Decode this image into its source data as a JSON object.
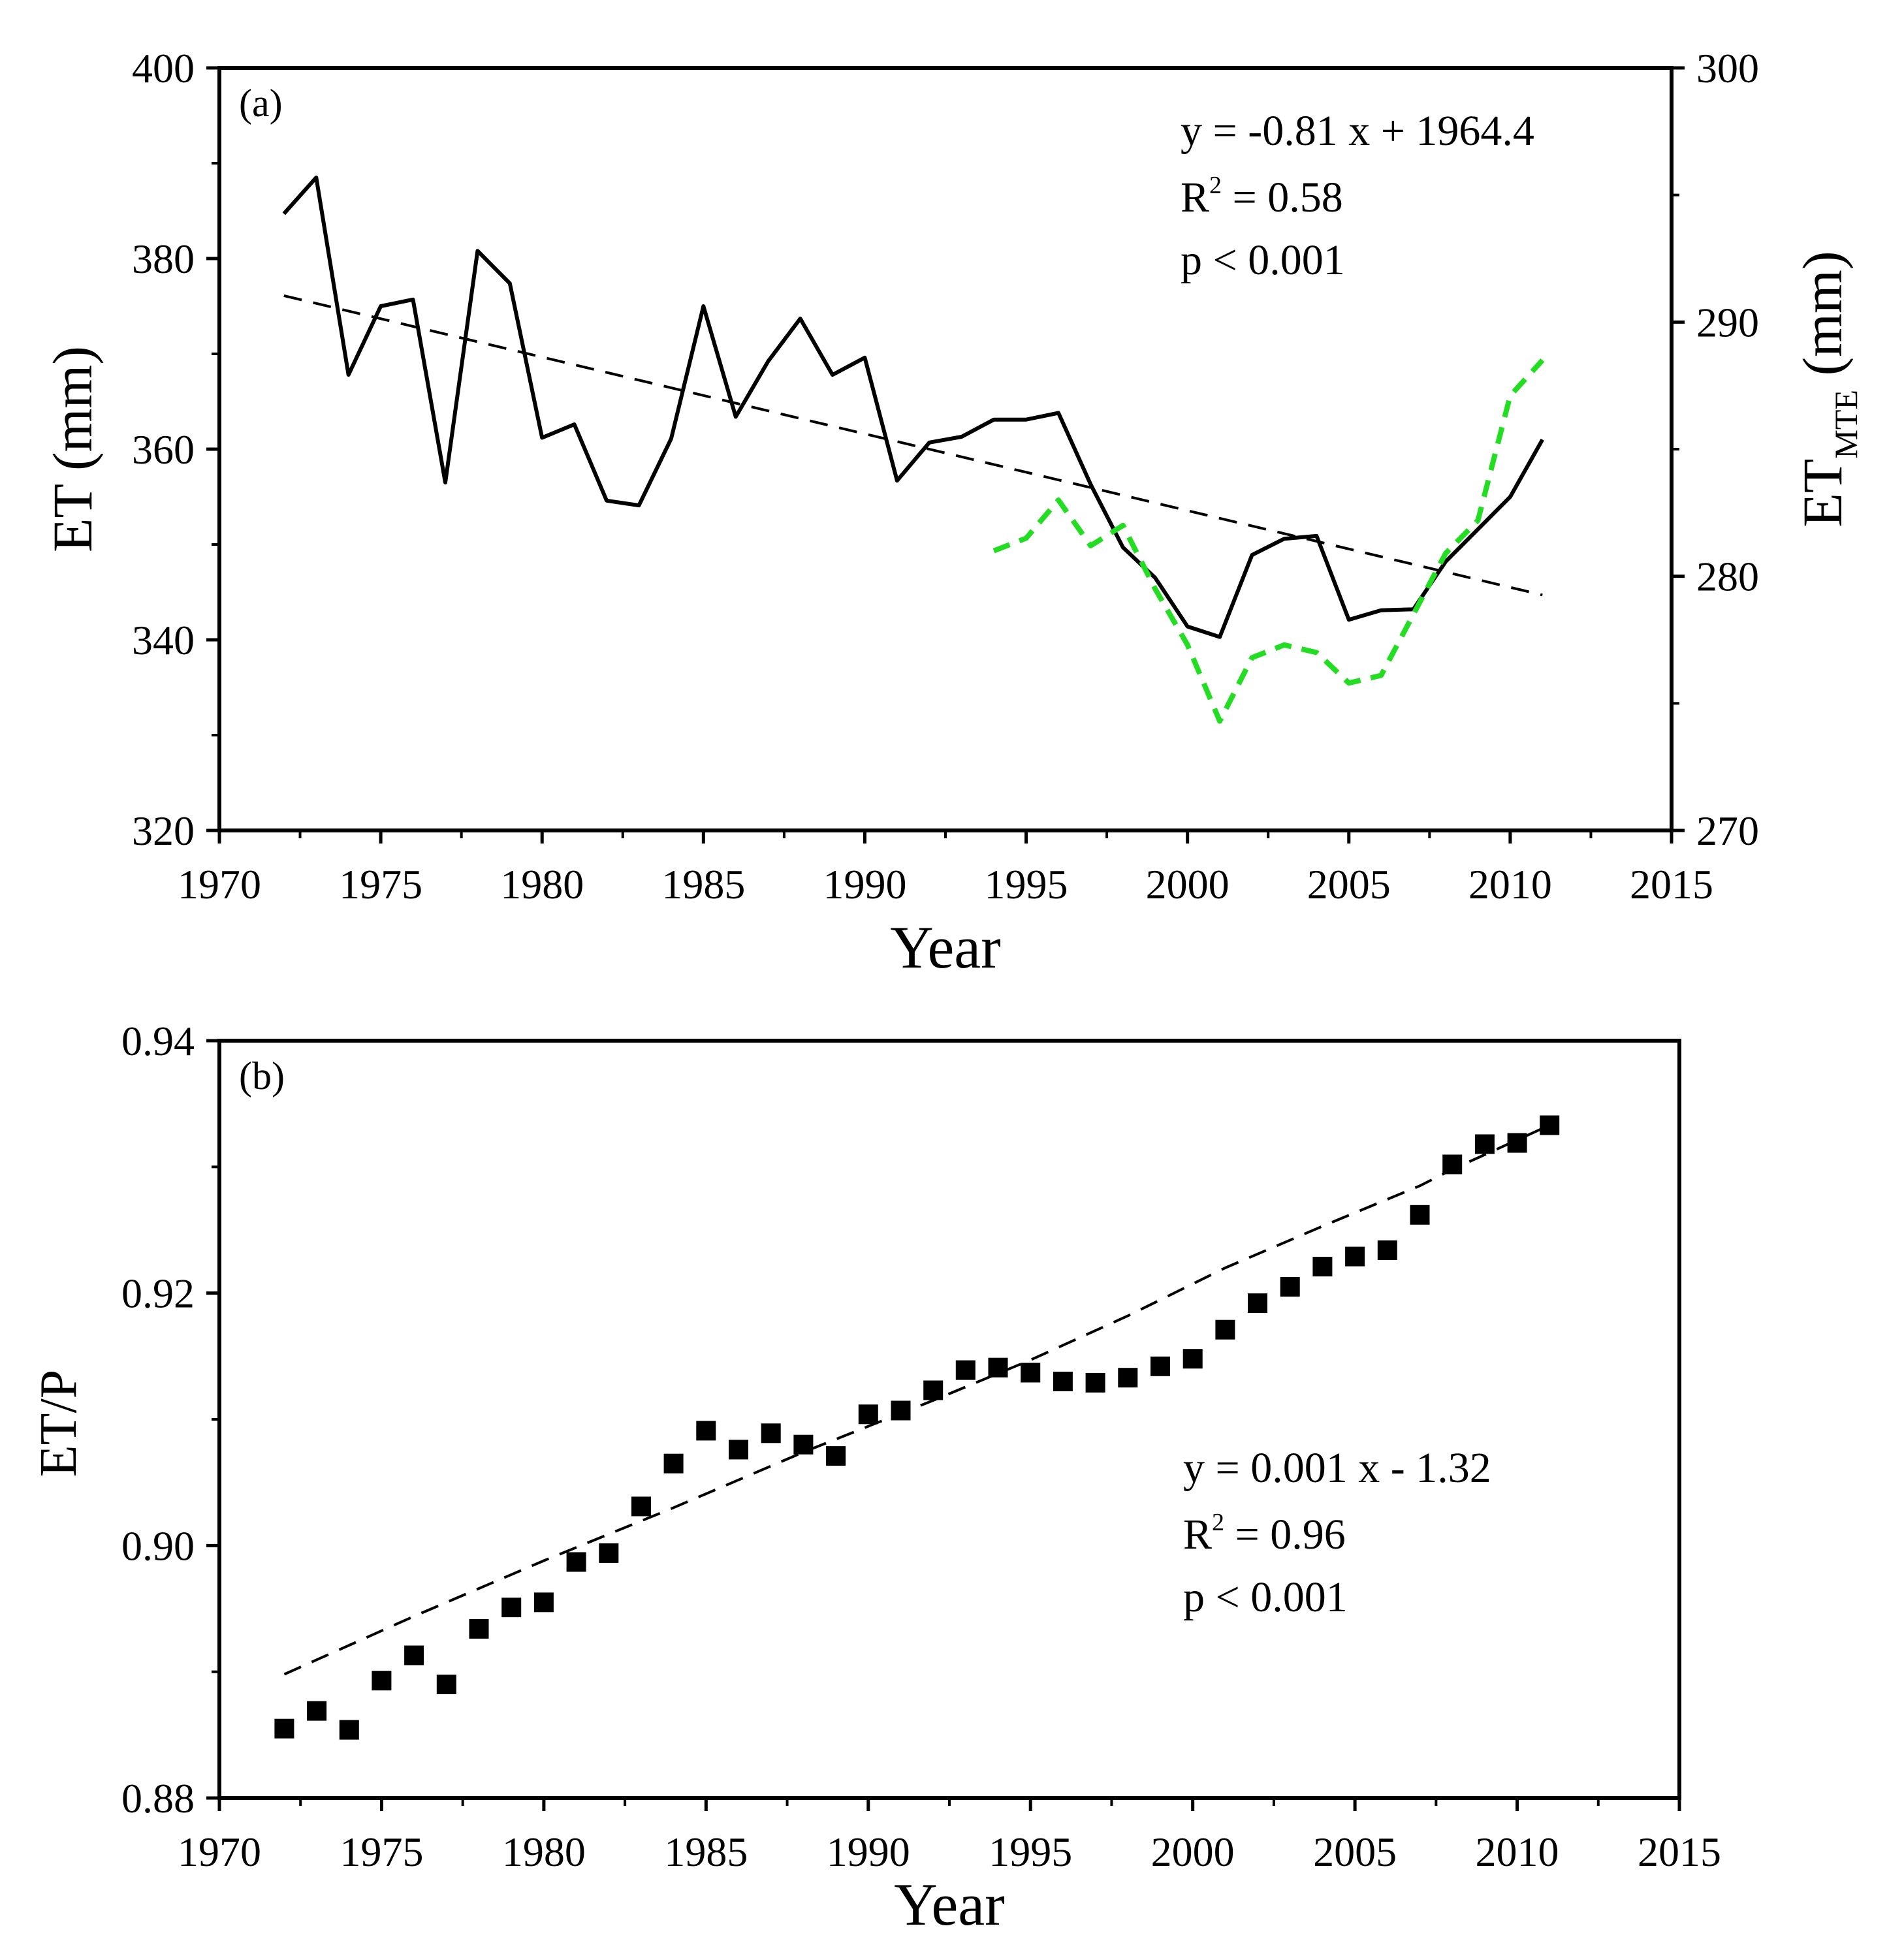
{
  "colors": {
    "et_line": "#000000",
    "mte_line": "#22dd22",
    "trend": "#000000",
    "points": "#000000"
  },
  "chart_data": [
    {
      "type": "line",
      "panel_label": "(a)",
      "xlabel": "Year",
      "ylabel": "ET (mm)",
      "ylabel_right_main": "ET",
      "ylabel_right_sub": "MTE",
      "ylabel_right_unit": " (mm)",
      "xlim": [
        1970,
        2015
      ],
      "ylim": [
        320,
        400
      ],
      "ylim_right": [
        270,
        300
      ],
      "xticks": [
        "1970",
        "1975",
        "1980",
        "1985",
        "1990",
        "1995",
        "2000",
        "2005",
        "2010",
        "2015"
      ],
      "yticks": [
        "320",
        "340",
        "360",
        "380",
        "400"
      ],
      "yticks_right": [
        "270",
        "280",
        "290",
        "300"
      ],
      "series": [
        {
          "name": "ET",
          "axis": "left",
          "style": "solid",
          "x": [
            1972,
            1973,
            1974,
            1975,
            1976,
            1977,
            1978,
            1979,
            1980,
            1981,
            1982,
            1983,
            1984,
            1985,
            1986,
            1987,
            1988,
            1989,
            1990,
            1991,
            1992,
            1993,
            1994,
            1995,
            1996,
            1997,
            1998,
            1999,
            2000,
            2001,
            2002,
            2003,
            2004,
            2005,
            2006,
            2007,
            2008,
            2009,
            2010,
            2011
          ],
          "values": [
            384.7,
            388.5,
            367.8,
            375.0,
            375.7,
            356.5,
            380.8,
            377.4,
            361.2,
            362.6,
            354.6,
            354.1,
            361.1,
            375.0,
            363.4,
            369.2,
            373.7,
            367.8,
            369.6,
            356.7,
            360.7,
            361.3,
            363.1,
            363.1,
            363.8,
            356.3,
            349.7,
            346.5,
            341.4,
            340.3,
            348.9,
            350.6,
            350.9,
            342.1,
            343.1,
            343.2,
            348.2,
            351.6,
            355.0,
            361.0
          ]
        },
        {
          "name": "ET_MTE",
          "axis": "right",
          "style": "dashed",
          "x": [
            1994,
            1995,
            1996,
            1997,
            1998,
            1999,
            2000,
            2001,
            2002,
            2003,
            2004,
            2005,
            2006,
            2007,
            2008,
            2009,
            2010,
            2011
          ],
          "values": [
            281.0,
            281.5,
            283.0,
            281.2,
            282.0,
            279.5,
            277.3,
            274.3,
            276.8,
            277.3,
            277.0,
            275.8,
            276.1,
            278.5,
            280.9,
            282.2,
            287.1,
            288.5
          ]
        },
        {
          "name": "Linear fit",
          "axis": "left",
          "style": "dashed",
          "x": [
            1972,
            2011
          ],
          "values": [
            376.1,
            344.7
          ]
        }
      ],
      "annotation": {
        "eq": "y = -0.81 x + 1964.4",
        "r2_pre": "R",
        "r2_exp": "2",
        "r2_post": " = 0.58",
        "p": "p < 0.001"
      }
    },
    {
      "type": "scatter",
      "panel_label": "(b)",
      "xlabel": "Year",
      "ylabel": "ET/P",
      "xlim": [
        1970,
        2015
      ],
      "ylim": [
        0.88,
        0.94
      ],
      "xticks": [
        "1970",
        "1975",
        "1980",
        "1985",
        "1990",
        "1995",
        "2000",
        "2005",
        "2010",
        "2015"
      ],
      "yticks": [
        "0.88",
        "0.90",
        "0.92",
        "0.94"
      ],
      "series": [
        {
          "name": "ET/P",
          "x": [
            1972,
            1973,
            1974,
            1975,
            1976,
            1977,
            1978,
            1979,
            1980,
            1981,
            1982,
            1983,
            1984,
            1985,
            1986,
            1987,
            1988,
            1989,
            1990,
            1991,
            1992,
            1993,
            1994,
            1995,
            1996,
            1997,
            1998,
            1999,
            2000,
            2001,
            2002,
            2003,
            2004,
            2005,
            2006,
            2007,
            2008,
            2009,
            2010,
            2011
          ],
          "values": [
            0.8855,
            0.8869,
            0.8854,
            0.8893,
            0.8913,
            0.889,
            0.8934,
            0.8951,
            0.8955,
            0.8987,
            0.8994,
            0.9031,
            0.9065,
            0.9091,
            0.9076,
            0.9089,
            0.908,
            0.9071,
            0.9104,
            0.9107,
            0.9123,
            0.9139,
            0.9141,
            0.9137,
            0.913,
            0.9129,
            0.9133,
            0.9142,
            0.9148,
            0.9171,
            0.9192,
            0.9205,
            0.9221,
            0.9229,
            0.9234,
            0.9262,
            0.9302,
            0.9318,
            0.9319,
            0.9333
          ]
        },
        {
          "name": "Fit",
          "style": "dashed",
          "x": [
            1972,
            1976,
            1980,
            1984,
            1988,
            1992,
            1995,
            1998,
            2001,
            2004,
            2007,
            2008,
            2011
          ],
          "values": [
            0.8898,
            0.8944,
            0.8988,
            0.903,
            0.9074,
            0.9115,
            0.9147,
            0.9182,
            0.922,
            0.9253,
            0.9285,
            0.9298,
            0.9333
          ]
        }
      ],
      "annotation": {
        "eq": "y = 0.001 x - 1.32",
        "r2_pre": "R",
        "r2_exp": "2",
        "r2_post": " = 0.96",
        "p": "p < 0.001"
      }
    }
  ]
}
